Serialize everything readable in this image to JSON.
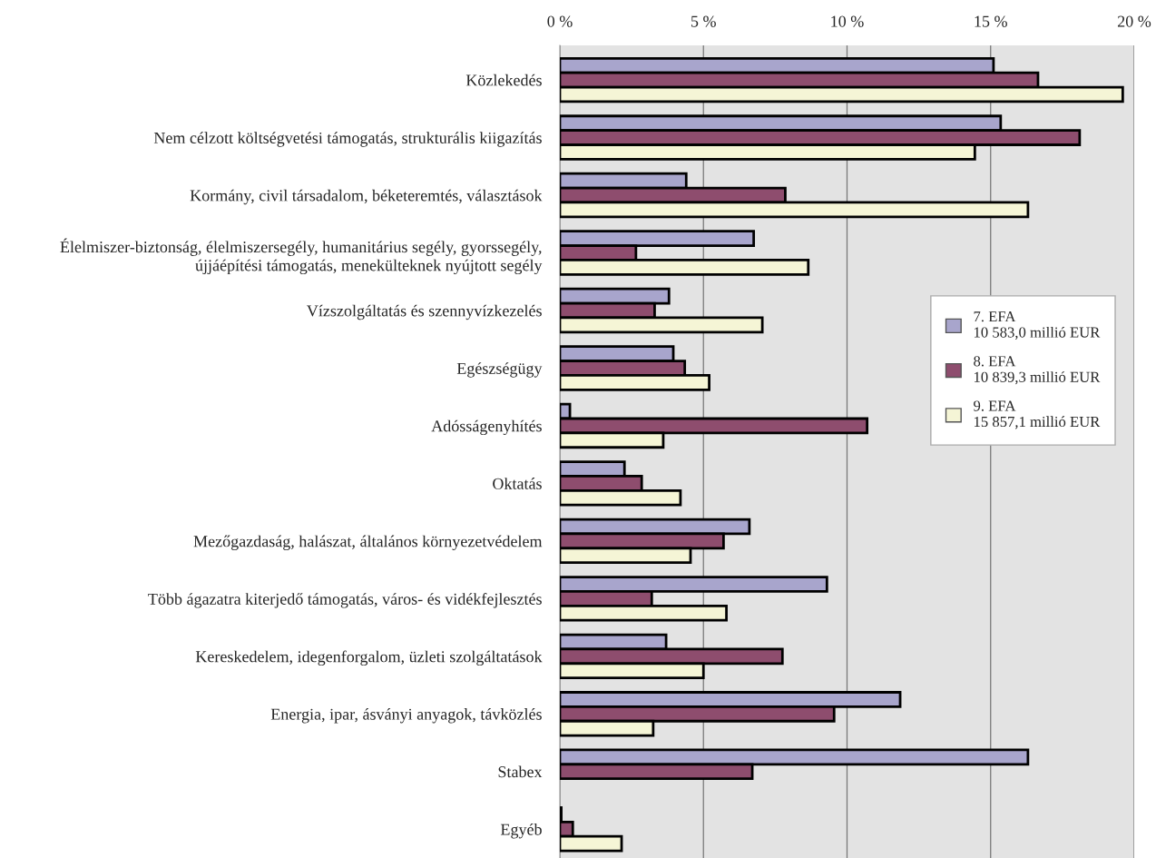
{
  "chart_data": {
    "type": "bar",
    "orientation": "horizontal",
    "categories": [
      "Közlekedés",
      "Nem célzott költségvetési támogatás, strukturális kiigazítás",
      "Kormány, civil társadalom, béketeremtés, választások",
      "Élelmiszer-biztonság, élelmiszersegély, humanitárius segély, gyorssegély,\nújjáépítési támogatás, menekülteknek nyújtott segély",
      "Vízszolgáltatás és szennyvízkezelés",
      "Egészségügy",
      "Adósságenyhítés",
      "Oktatás",
      "Mezőgazdaság, halászat, általános környezetvédelem",
      "Több ágazatra kiterjedő támogatás, város- és vidékfejlesztés",
      "Kereskedelem, idegenforgalom, üzleti szolgáltatások",
      "Energia, ipar, ásványi anyagok, távközlés",
      "Stabex",
      "Egyéb"
    ],
    "series": [
      {
        "name": "7. EFA\n10 583,0 millió EUR",
        "color": "#a8a5cc",
        "values": [
          15.1,
          15.35,
          4.4,
          6.75,
          3.8,
          3.95,
          0.35,
          2.25,
          6.6,
          9.3,
          3.7,
          11.85,
          16.3,
          0.05
        ]
      },
      {
        "name": "8. EFA\n10 839,3 millió EUR",
        "color": "#8e4d6e",
        "values": [
          16.65,
          18.1,
          7.85,
          2.65,
          3.3,
          4.35,
          10.7,
          2.85,
          5.7,
          3.2,
          7.75,
          9.55,
          6.7,
          0.45
        ]
      },
      {
        "name": "9. EFA\n15 857,1 millió EUR",
        "color": "#f5f5d6",
        "values": [
          19.6,
          14.45,
          16.3,
          8.65,
          7.05,
          5.2,
          3.6,
          4.2,
          4.55,
          5.8,
          5.0,
          3.25,
          null,
          2.15
        ]
      }
    ],
    "xlim": [
      0,
      20
    ],
    "xticks": [
      {
        "value": 0,
        "label": "0 %"
      },
      {
        "value": 5,
        "label": "5 %"
      },
      {
        "value": 10,
        "label": "10 %"
      },
      {
        "value": 15,
        "label": "15 %"
      },
      {
        "value": 20,
        "label": "20 %"
      }
    ],
    "grid": "x",
    "legend": "right"
  }
}
